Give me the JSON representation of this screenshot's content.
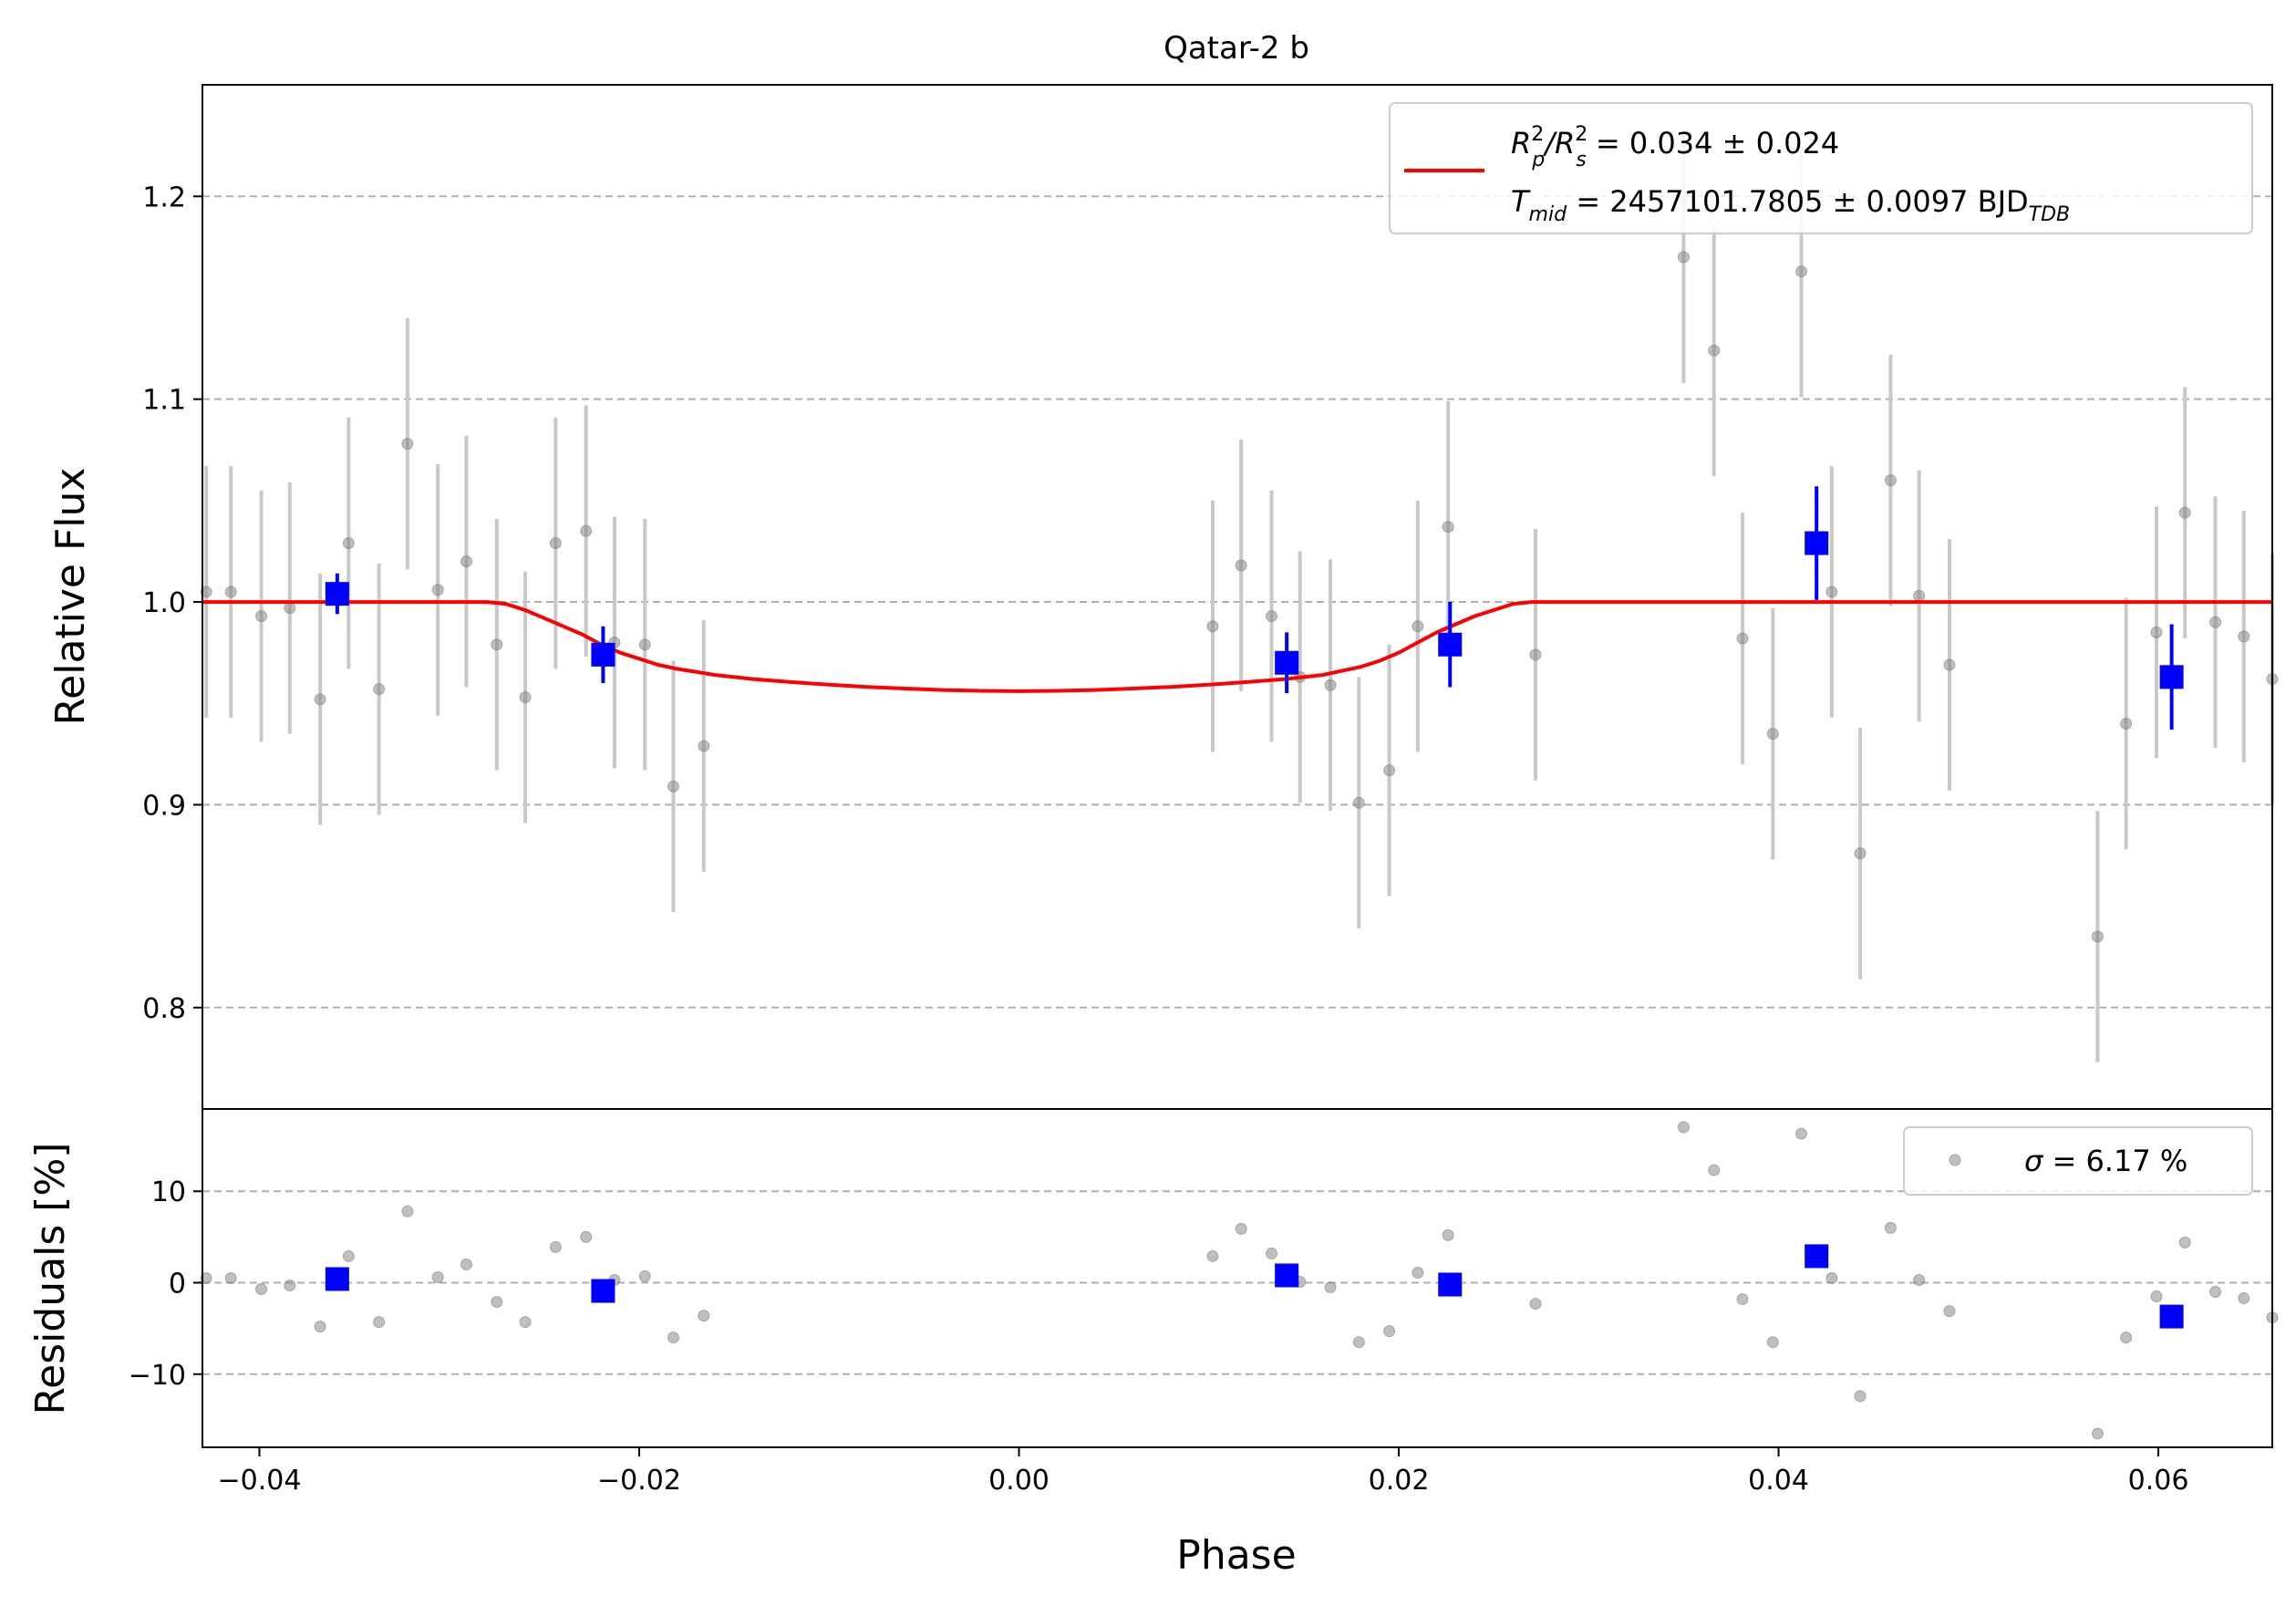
{
  "chart_data": {
    "type": "scatter",
    "title": "Qatar-2 b",
    "xlabel": "Phase",
    "xlim": [
      -0.043,
      0.066
    ],
    "x_ticks": [
      -0.04,
      -0.02,
      0.0,
      0.02,
      0.04,
      0.06
    ],
    "x_tick_labels": [
      "−0.04",
      "−0.02",
      "0.00",
      "0.02",
      "0.04",
      "0.06"
    ],
    "top_panel": {
      "ylabel": "Relative Flux",
      "ylim": [
        0.75,
        1.255
      ],
      "y_ticks": [
        0.8,
        0.9,
        1.0,
        1.1,
        1.2
      ],
      "y_tick_labels": [
        "0.8",
        "0.9",
        "1.0",
        "1.1",
        "1.2"
      ],
      "grid": "horizontal dashed",
      "legend_position": "top-right",
      "legend": {
        "line1": {
          "a": "R",
          "a_sup": "2",
          "a_sub": "p",
          "b": "/R",
          "b_sup": "2",
          "b_sub": "s",
          "c": " = 0.034 ± 0.024"
        },
        "line2": {
          "a": "T",
          "a_sub": "mid",
          "b": " = 2457101.7805 ± 0.0097 BJD",
          "b_sub": "TDB"
        }
      },
      "raw_points": {
        "color": "#808080",
        "err_color": "#c8c8c8",
        "x": [
          -0.0428,
          -0.0415,
          -0.0399,
          -0.0384,
          -0.0368,
          -0.0353,
          -0.0337,
          -0.0322,
          -0.0306,
          -0.0291,
          -0.0275,
          -0.026,
          -0.0244,
          -0.0228,
          -0.0213,
          -0.0197,
          -0.0182,
          -0.0166,
          0.0102,
          0.0117,
          0.0133,
          0.0148,
          0.0164,
          0.0179,
          0.0195,
          0.021,
          0.0226,
          0.0272,
          0.035,
          0.0366,
          0.0381,
          0.0397,
          0.0412,
          0.0428,
          0.0443,
          0.0459,
          0.0474,
          0.049,
          0.0568,
          0.0583,
          0.0599,
          0.0614,
          0.063,
          0.0645,
          0.066
        ],
        "y": [
          1.005,
          1.005,
          0.993,
          0.997,
          0.952,
          1.029,
          0.957,
          1.078,
          1.006,
          1.02,
          0.979,
          0.953,
          1.029,
          1.035,
          0.98,
          0.979,
          0.909,
          0.929,
          0.988,
          1.018,
          0.993,
          0.963,
          0.959,
          0.901,
          0.917,
          0.988,
          1.037,
          0.974,
          1.17,
          1.124,
          0.982,
          0.935,
          1.163,
          1.005,
          0.876,
          1.06,
          1.003,
          0.969,
          0.835,
          0.94,
          0.985,
          1.044,
          0.99,
          0.983,
          0.962
        ],
        "yerr": 0.062
      },
      "binned_points": {
        "color": "#0000ff",
        "x": [
          -0.0359,
          -0.0219,
          0.0141,
          0.0227,
          0.042,
          0.0607
        ],
        "y": [
          1.004,
          0.974,
          0.97,
          0.979,
          1.029,
          0.963
        ],
        "yerr": [
          0.01,
          0.014,
          0.015,
          0.021,
          0.028,
          0.026
        ]
      },
      "model": {
        "color": "#ff0000",
        "x": [
          -0.043,
          -0.028,
          -0.027,
          -0.026,
          -0.025,
          -0.024,
          -0.023,
          -0.022,
          -0.021,
          -0.02,
          -0.019,
          -0.018,
          -0.016,
          -0.014,
          -0.012,
          -0.01,
          -0.008,
          -0.006,
          -0.004,
          -0.002,
          0.0,
          0.002,
          0.004,
          0.006,
          0.008,
          0.01,
          0.012,
          0.014,
          0.016,
          0.018,
          0.019,
          0.02,
          0.021,
          0.022,
          0.023,
          0.024,
          0.025,
          0.026,
          0.027,
          0.028,
          0.066
        ],
        "y": [
          1.0,
          1.0,
          0.999,
          0.996,
          0.992,
          0.988,
          0.984,
          0.979,
          0.975,
          0.972,
          0.969,
          0.967,
          0.964,
          0.962,
          0.9605,
          0.9592,
          0.9581,
          0.9573,
          0.9566,
          0.9562,
          0.956,
          0.9562,
          0.9566,
          0.9573,
          0.9581,
          0.9592,
          0.9605,
          0.962,
          0.964,
          0.968,
          0.971,
          0.975,
          0.98,
          0.985,
          0.989,
          0.993,
          0.996,
          0.999,
          1.0,
          1.0,
          1.0
        ]
      }
    },
    "bottom_panel": {
      "ylabel": "Residuals [%]",
      "ylim": [
        -18,
        19
      ],
      "y_ticks": [
        -10,
        0,
        10
      ],
      "y_tick_labels": [
        "−10",
        "0",
        "10"
      ],
      "grid": "horizontal dashed",
      "legend_position": "top-right",
      "legend": {
        "sigma": "σ",
        "text": " = 6.17 %"
      },
      "raw_points": {
        "x": [
          -0.0428,
          -0.0415,
          -0.0399,
          -0.0384,
          -0.0368,
          -0.0353,
          -0.0337,
          -0.0322,
          -0.0306,
          -0.0291,
          -0.0275,
          -0.026,
          -0.0244,
          -0.0228,
          -0.0213,
          -0.0197,
          -0.0182,
          -0.0166,
          0.0102,
          0.0117,
          0.0133,
          0.0148,
          0.0164,
          0.0179,
          0.0195,
          0.021,
          0.0226,
          0.0272,
          0.035,
          0.0366,
          0.0381,
          0.0397,
          0.0412,
          0.0428,
          0.0443,
          0.0459,
          0.0474,
          0.049,
          0.0568,
          0.0583,
          0.0599,
          0.0614,
          0.063,
          0.0645,
          0.066
        ],
        "y": [
          0.5,
          0.5,
          -0.7,
          -0.3,
          -4.8,
          2.9,
          -4.3,
          7.8,
          0.6,
          2.0,
          -2.1,
          -4.3,
          3.9,
          5.0,
          0.3,
          0.7,
          -6.0,
          -3.6,
          2.9,
          5.9,
          3.2,
          0.1,
          -0.5,
          -6.5,
          -5.3,
          1.1,
          5.2,
          -2.3,
          17.0,
          12.3,
          -1.8,
          -6.5,
          16.3,
          0.5,
          -12.4,
          6.0,
          0.3,
          -3.1,
          -16.5,
          -6.0,
          -1.5,
          4.4,
          -1.0,
          -1.7,
          -3.8
        ]
      },
      "binned_points": {
        "x": [
          -0.0359,
          -0.0219,
          0.0141,
          0.0227,
          0.042,
          0.0607
        ],
        "y": [
          0.4,
          -0.9,
          0.8,
          -0.2,
          2.9,
          -3.7
        ]
      }
    }
  }
}
